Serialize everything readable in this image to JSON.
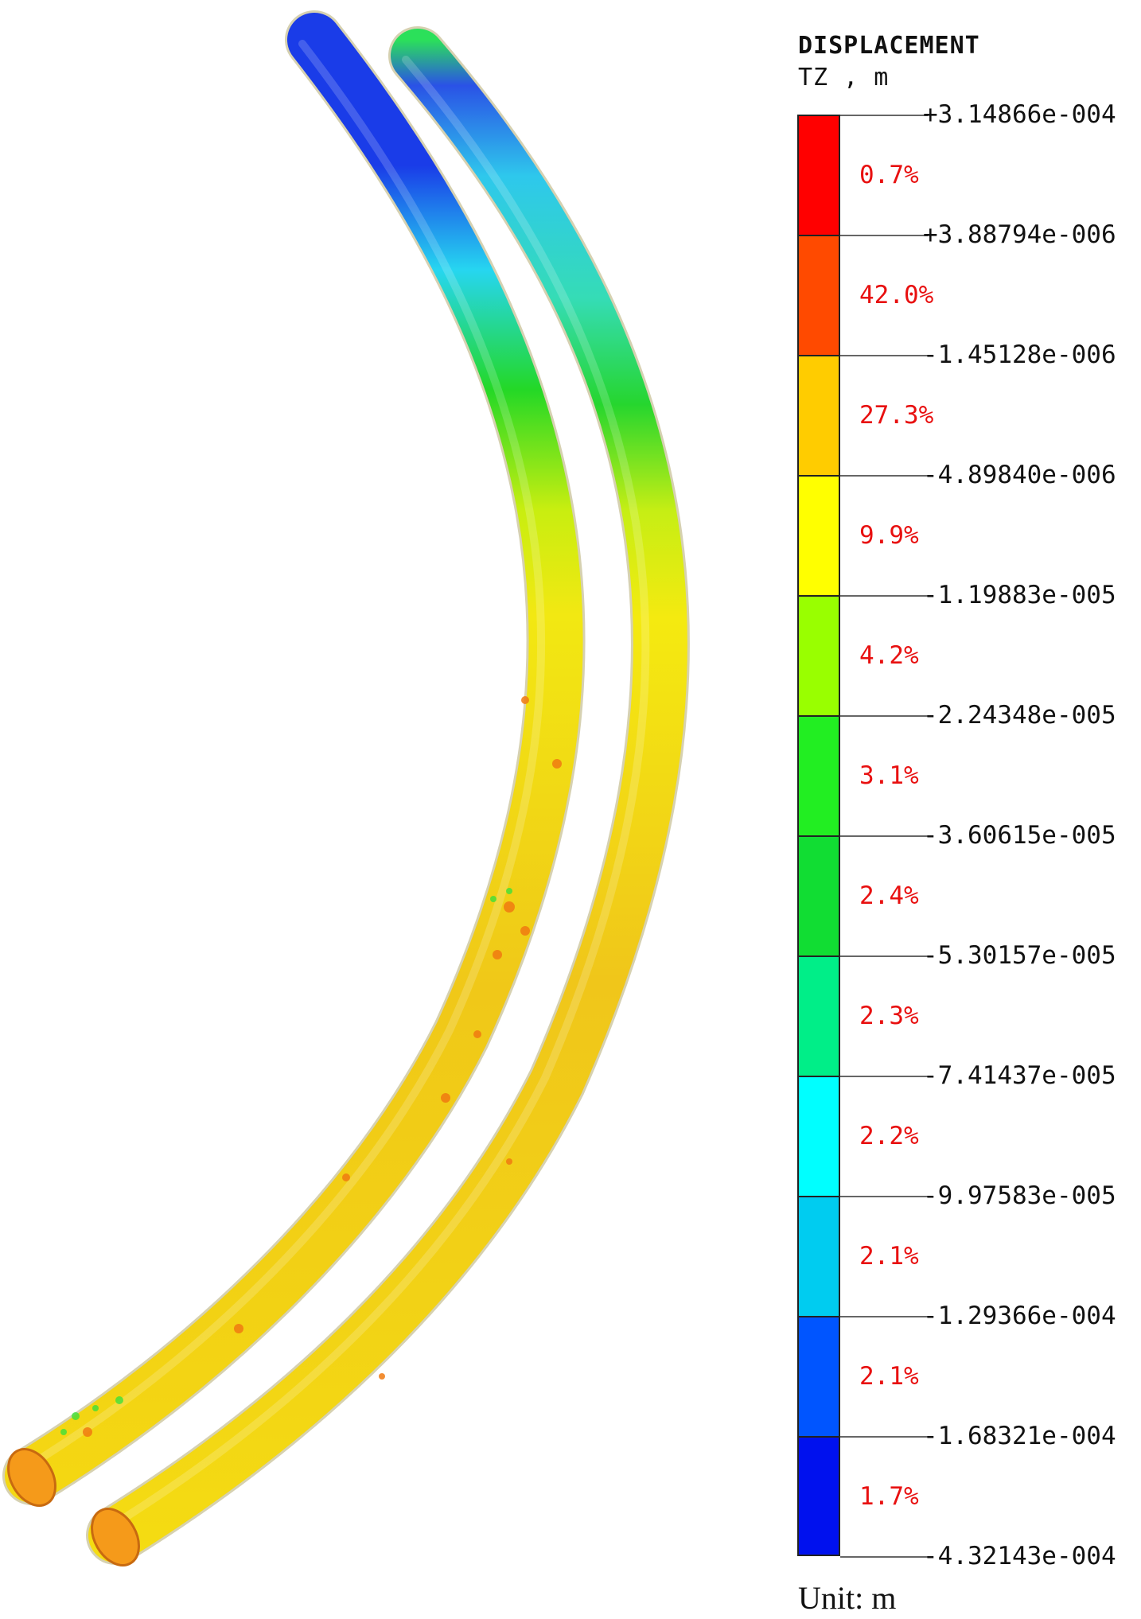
{
  "legend": {
    "title_line1": "DISPLACEMENT",
    "title_line2": "TZ , m",
    "unit_label": "Unit: m",
    "boundaries": [
      "+3.14866e-004",
      "+3.88794e-006",
      "-1.45128e-006",
      "-4.89840e-006",
      "-1.19883e-005",
      "-2.24348e-005",
      "-3.60615e-005",
      "-5.30157e-005",
      "-7.41437e-005",
      "-9.97583e-005",
      "-1.29366e-004",
      "-1.68321e-004",
      "-4.32143e-004"
    ],
    "bins": [
      {
        "color": "#ff0000",
        "percent": "0.7%"
      },
      {
        "color": "#ff4a00",
        "percent": "42.0%"
      },
      {
        "color": "#ffcc00",
        "percent": "27.3%"
      },
      {
        "color": "#ffff00",
        "percent": "9.9%"
      },
      {
        "color": "#99ff00",
        "percent": "4.2%"
      },
      {
        "color": "#22ee22",
        "percent": "3.1%"
      },
      {
        "color": "#11dd33",
        "percent": "2.4%"
      },
      {
        "color": "#00ee88",
        "percent": "2.3%"
      },
      {
        "color": "#00ffff",
        "percent": "2.2%"
      },
      {
        "color": "#00ccf0",
        "percent": "2.1%"
      },
      {
        "color": "#0055ff",
        "percent": "2.1%"
      },
      {
        "color": "#0011ee",
        "percent": "1.7%"
      }
    ]
  },
  "model": {
    "description_colors": {
      "top_end": "#0033ee",
      "upper": "#00ddee",
      "middle": "#22dd22",
      "body": "#eedd00",
      "bottom": "#ff9900"
    }
  }
}
